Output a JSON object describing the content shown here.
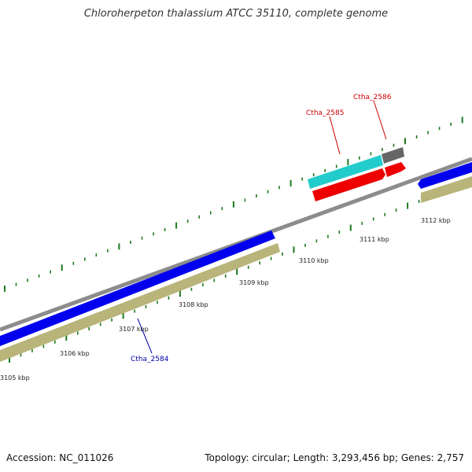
{
  "title": "Chloroherpeton thalassium ATCC 35110, complete genome",
  "accession": "Accession: NC_011026",
  "stats": "Topology: circular; Length: 3,293,456 bp; Genes: 2,757",
  "colors": {
    "backbone": "#8c8c8c",
    "tick": "#1e7a1e",
    "forward_gene": "#0000ee",
    "reverse_gene": "#b8b47a",
    "gene_cyan": "#22cccc",
    "gene_red": "#ee0000",
    "gene_gray": "#666666",
    "label_red": "#cc0000",
    "label_blue": "#0000aa"
  },
  "scale_labels": [
    "3105 kbp",
    "3106 kbp",
    "3107 kbp",
    "3108 kbp",
    "3109 kbp",
    "3110 kbp",
    "3111 kbp",
    "3112 kbp"
  ],
  "gene_labels": {
    "ctha_2584": "Ctha_2584",
    "ctha_2585": "Ctha_2585",
    "ctha_2586": "Ctha_2586"
  }
}
